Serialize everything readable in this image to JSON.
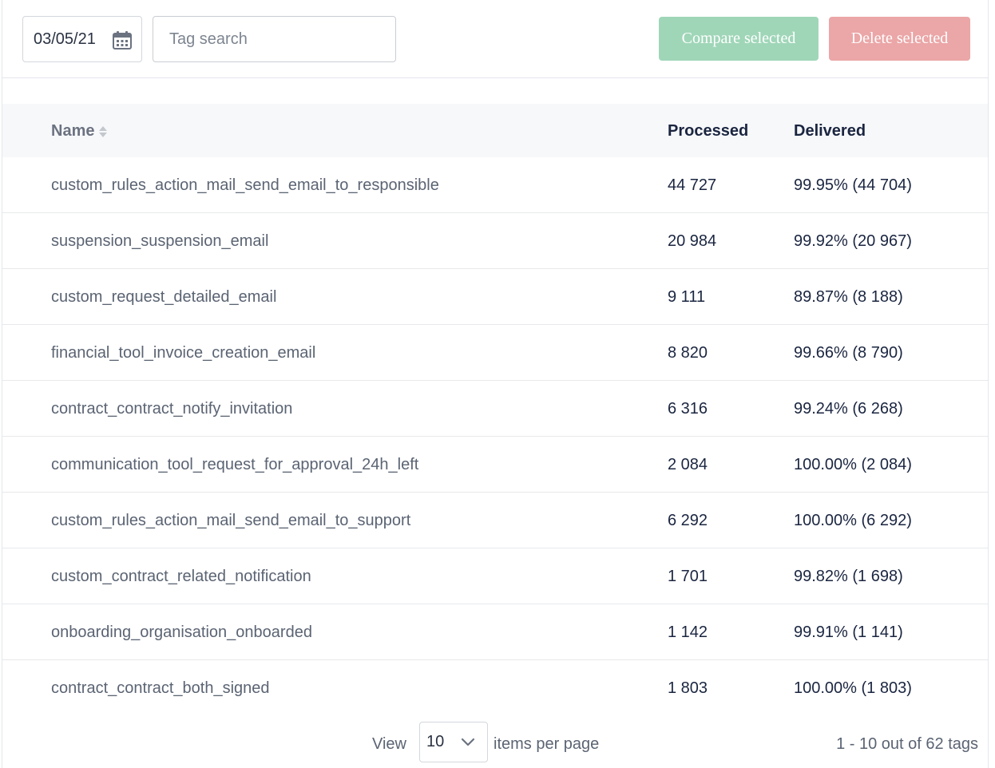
{
  "toolbar": {
    "date_value": "03/05/21",
    "date_icon": "calendar-icon",
    "search_placeholder": "Tag search",
    "compare_label": "Compare selected",
    "delete_label": "Delete selected"
  },
  "table": {
    "headers": {
      "name": "Name",
      "processed": "Processed",
      "delivered": "Delivered"
    },
    "rows": [
      {
        "name": "custom_rules_action_mail_send_email_to_responsible",
        "processed": "44 727",
        "delivered": "99.95% (44 704)"
      },
      {
        "name": "suspension_suspension_email",
        "processed": "20 984",
        "delivered": "99.92% (20 967)"
      },
      {
        "name": "custom_request_detailed_email",
        "processed": "9 111",
        "delivered": "89.87% (8 188)"
      },
      {
        "name": "financial_tool_invoice_creation_email",
        "processed": "8 820",
        "delivered": "99.66% (8 790)"
      },
      {
        "name": "contract_contract_notify_invitation",
        "processed": "6 316",
        "delivered": "99.24% (6 268)"
      },
      {
        "name": "communication_tool_request_for_approval_24h_left",
        "processed": "2 084",
        "delivered": "100.00% (2 084)"
      },
      {
        "name": "custom_rules_action_mail_send_email_to_support",
        "processed": "6 292",
        "delivered": "100.00% (6 292)"
      },
      {
        "name": "custom_contract_related_notification",
        "processed": "1 701",
        "delivered": "99.82% (1 698)"
      },
      {
        "name": "onboarding_organisation_onboarded",
        "processed": "1 142",
        "delivered": "99.91% (1 141)"
      },
      {
        "name": "contract_contract_both_signed",
        "processed": "1 803",
        "delivered": "100.00% (1 803)"
      }
    ]
  },
  "pagination": {
    "view_label": "View",
    "per_page_value": "10",
    "per_page_label": "items per page",
    "range_text": "1 - 10 out of 62 tags"
  },
  "colors": {
    "compare_button": "#9fd6b8",
    "delete_button": "#eba6a7",
    "header_bg": "#f7f8fa"
  }
}
